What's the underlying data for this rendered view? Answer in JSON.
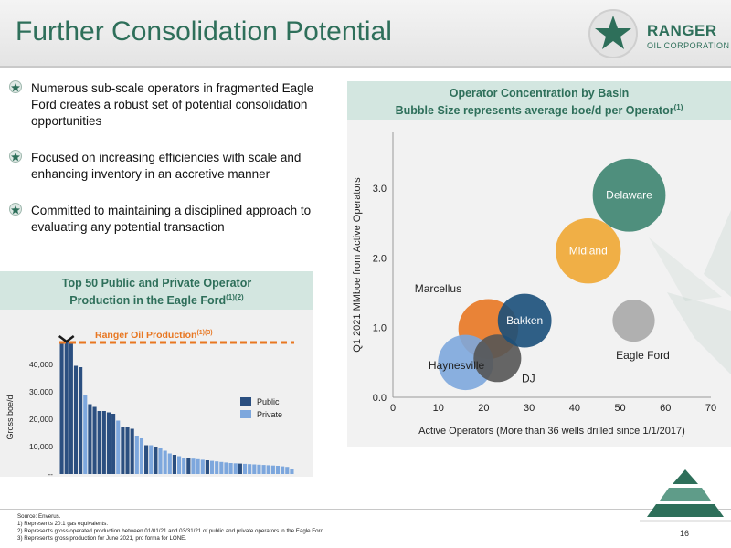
{
  "slide": {
    "title": "Further Consolidation Potential",
    "page_number": "16"
  },
  "logo": {
    "name": "RANGER",
    "subtitle": "OIL CORPORATION"
  },
  "bullets": [
    "Numerous sub-scale operators in fragmented Eagle Ford creates a robust set of potential consolidation opportunities",
    "Focused on increasing efficiencies with scale and enhancing inventory in an accretive manner",
    "Committed to maintaining a disciplined approach to evaluating any potential transaction"
  ],
  "eagle_ford_chart": {
    "header_line1": "Top 50 Public and Private Operator",
    "header_line2": "Production in the Eagle Ford",
    "header_sup": "(1)(2)",
    "annotation": "Ranger Oil Production",
    "annotation_sup": "(1)(3)"
  },
  "basin_chart": {
    "header_line1": "Operator Concentration by Basin",
    "header_line2": "Bubble Size represents average boe/d per Operator",
    "header_sup": "(1)"
  },
  "footnotes": [
    "Source: Enverus.",
    "1) Represents 20:1 gas equivalents.",
    "2) Represents gross operated production between 01/01/21 and 03/31/21 of public and private operators in the Eagle Ford.",
    "3) Represents gross production for June 2021, pro forma for LONE."
  ],
  "colors": {
    "brand_green": "#2e6f5a",
    "panel_header_bg": "#d3e6e0",
    "public_bar": "#2b4f80",
    "private_bar": "#7da7dd",
    "ranger_line": "#e87722"
  },
  "chart_data": [
    {
      "type": "bar",
      "title": "Top 50 Public and Private Operator Production in the Eagle Ford",
      "ylabel": "Gross boe/d",
      "ylim": [
        0,
        50000
      ],
      "yticks": [
        "--",
        "10,000",
        "20,000",
        "30,000",
        "40,000"
      ],
      "ytick_values": [
        0,
        10000,
        20000,
        30000,
        40000
      ],
      "legend": [
        "Public",
        "Private"
      ],
      "legend_position": "right",
      "reference_line": {
        "label": "Ranger Oil Production",
        "label_sup": "(1)(3)",
        "value": 48000
      },
      "highlight_marker": {
        "bar_index": 0
      },
      "series": [
        {
          "name": "Operators",
          "values": [
            48000,
            48000,
            48000,
            39500,
            39000,
            29000,
            25500,
            24500,
            23000,
            23000,
            22500,
            22000,
            19500,
            17000,
            17000,
            16500,
            14000,
            13000,
            10500,
            10500,
            10000,
            9500,
            8500,
            7500,
            7000,
            6500,
            6000,
            5800,
            5600,
            5400,
            5200,
            5000,
            4800,
            4600,
            4400,
            4200,
            4000,
            3900,
            3800,
            3700,
            3600,
            3500,
            3400,
            3300,
            3200,
            3100,
            3000,
            2800,
            2600,
            1800
          ],
          "types": [
            "Public",
            "Public",
            "Public",
            "Public",
            "Public",
            "Private",
            "Public",
            "Public",
            "Public",
            "Public",
            "Public",
            "Public",
            "Private",
            "Public",
            "Public",
            "Public",
            "Private",
            "Private",
            "Public",
            "Private",
            "Public",
            "Private",
            "Private",
            "Private",
            "Public",
            "Private",
            "Private",
            "Public",
            "Private",
            "Private",
            "Private",
            "Public",
            "Private",
            "Private",
            "Private",
            "Private",
            "Private",
            "Private",
            "Public",
            "Private",
            "Private",
            "Private",
            "Private",
            "Private",
            "Private",
            "Private",
            "Private",
            "Private",
            "Private",
            "Private"
          ]
        }
      ]
    },
    {
      "type": "scatter",
      "xlabel": "Active Operators (More than 36 wells drilled since 1/1/2017)",
      "ylabel": "Q1 2021 MMboe from Active Operators",
      "xlim": [
        0,
        70
      ],
      "ylim": [
        0.0,
        3.8
      ],
      "xticks": [
        "0",
        "10",
        "20",
        "30",
        "40",
        "50",
        "60",
        "70"
      ],
      "xtick_values": [
        0,
        10,
        20,
        30,
        40,
        50,
        60,
        70
      ],
      "yticks": [
        "0.0",
        "1.0",
        "2.0",
        "3.0"
      ],
      "ytick_values": [
        0,
        1,
        2,
        3
      ],
      "points": [
        {
          "name": "Marcellus",
          "x": 21,
          "y": 0.98,
          "size": 0.78,
          "color": "#e87722",
          "label_inside": false,
          "label_dx": -55,
          "label_dy": -40
        },
        {
          "name": "Haynesville",
          "x": 16,
          "y": 0.5,
          "size": 0.72,
          "color": "#7da7dd",
          "label_inside": false,
          "label_dx": -10,
          "label_dy": 7
        },
        {
          "name": "DJ",
          "x": 23,
          "y": 0.56,
          "size": 0.62,
          "color": "#555555",
          "label_inside": false,
          "label_dx": 34,
          "label_dy": 26
        },
        {
          "name": "Bakken",
          "x": 29,
          "y": 1.1,
          "size": 0.7,
          "color": "#1a4f7a",
          "label_inside": true
        },
        {
          "name": "Midland",
          "x": 43,
          "y": 2.1,
          "size": 0.85,
          "color": "#f0a733",
          "label_inside": true
        },
        {
          "name": "Delaware",
          "x": 52,
          "y": 2.9,
          "size": 0.95,
          "color": "#3d8470",
          "label_inside": true
        },
        {
          "name": "Eagle Ford",
          "x": 53,
          "y": 1.1,
          "size": 0.55,
          "color": "#a8a8a8",
          "label_inside": false,
          "label_dx": 10,
          "label_dy": 42
        }
      ]
    }
  ]
}
